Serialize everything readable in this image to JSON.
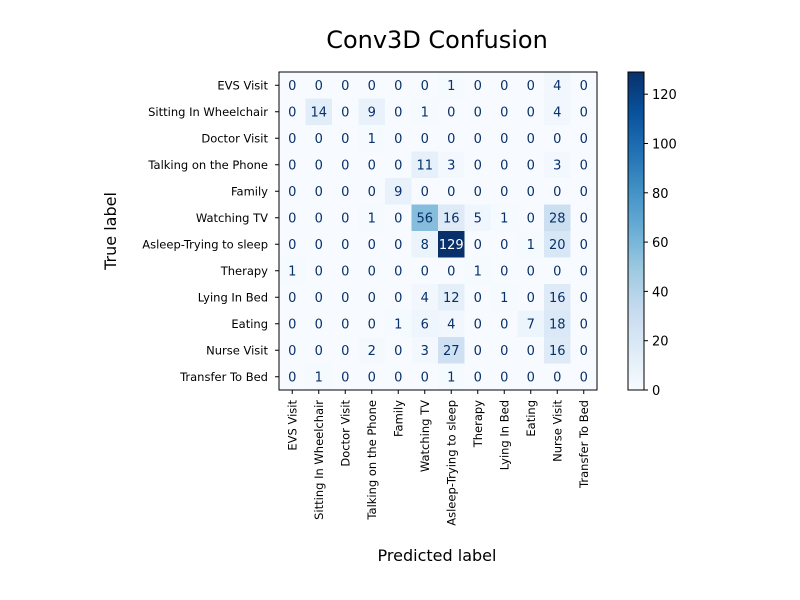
{
  "chart_data": {
    "type": "heatmap",
    "title": "Conv3D Confusion",
    "xlabel": "Predicted label",
    "ylabel": "True label",
    "colormap": "Blues",
    "color_range": [
      0,
      129
    ],
    "colorbar_ticks": [
      0,
      20,
      40,
      60,
      80,
      100,
      120
    ],
    "labels": [
      "EVS Visit",
      "Sitting In Wheelchair",
      "Doctor Visit",
      "Talking on the Phone",
      "Family",
      "Watching TV",
      "Asleep-Trying to sleep",
      "Therapy",
      "Lying In Bed",
      "Eating",
      "Nurse Visit",
      "Transfer To Bed"
    ],
    "matrix": [
      [
        0,
        0,
        0,
        0,
        0,
        0,
        1,
        0,
        0,
        0,
        4,
        0
      ],
      [
        0,
        14,
        0,
        9,
        0,
        1,
        0,
        0,
        0,
        0,
        4,
        0
      ],
      [
        0,
        0,
        0,
        1,
        0,
        0,
        0,
        0,
        0,
        0,
        0,
        0
      ],
      [
        0,
        0,
        0,
        0,
        0,
        11,
        3,
        0,
        0,
        0,
        3,
        0
      ],
      [
        0,
        0,
        0,
        0,
        9,
        0,
        0,
        0,
        0,
        0,
        0,
        0
      ],
      [
        0,
        0,
        0,
        1,
        0,
        56,
        16,
        5,
        1,
        0,
        28,
        0
      ],
      [
        0,
        0,
        0,
        0,
        0,
        8,
        129,
        0,
        0,
        1,
        20,
        0
      ],
      [
        1,
        0,
        0,
        0,
        0,
        0,
        0,
        1,
        0,
        0,
        0,
        0
      ],
      [
        0,
        0,
        0,
        0,
        0,
        4,
        12,
        0,
        1,
        0,
        16,
        0
      ],
      [
        0,
        0,
        0,
        0,
        1,
        6,
        4,
        0,
        0,
        7,
        18,
        0
      ],
      [
        0,
        0,
        0,
        2,
        0,
        3,
        27,
        0,
        0,
        0,
        16,
        0
      ],
      [
        0,
        1,
        0,
        0,
        0,
        0,
        1,
        0,
        0,
        0,
        0,
        0
      ]
    ]
  }
}
